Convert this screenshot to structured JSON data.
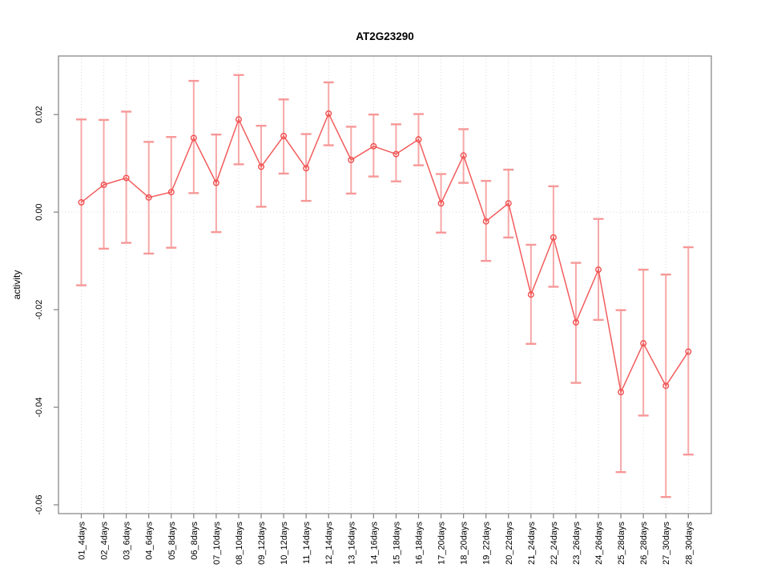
{
  "figure": {
    "title": "AT2G23290",
    "ylabel": "activity"
  },
  "chart_data": {
    "type": "line",
    "title": "AT2G23290",
    "xlabel": "",
    "ylabel": "activity",
    "point_style": "open-circle",
    "error_bars": true,
    "legend": "none",
    "grid": "vertical dotted gridline per category; dotted horizontal line at y=0",
    "ylim": [
      -0.0618,
      0.032
    ],
    "ytick_values": [
      0.02,
      0.0,
      -0.02,
      -0.04,
      -0.06
    ],
    "ytick_labels": [
      "0.02",
      "0.00",
      "-0.02",
      "-0.04",
      "-0.06"
    ],
    "categories": [
      "01_4days",
      "02_4days",
      "03_6days",
      "04_6days",
      "05_8days",
      "06_8days",
      "07_10days",
      "08_10days",
      "09_12days",
      "10_12days",
      "11_14days",
      "12_14days",
      "13_16days",
      "14_16days",
      "15_18days",
      "16_18days",
      "17_20days",
      "18_20days",
      "19_22days",
      "20_22days",
      "21_24days",
      "22_24days",
      "23_26days",
      "24_26days",
      "25_28days",
      "26_28days",
      "27_30days",
      "28_30days"
    ],
    "series": [
      {
        "name": "activity",
        "values": [
          0.002,
          0.0056,
          0.007,
          0.003,
          0.0041,
          0.0152,
          0.006,
          0.019,
          0.0093,
          0.0156,
          0.009,
          0.0202,
          0.0107,
          0.0135,
          0.0119,
          0.0149,
          0.0018,
          0.0116,
          -0.0019,
          0.0018,
          -0.0169,
          -0.0052,
          -0.0226,
          -0.0118,
          -0.0369,
          -0.0269,
          -0.0356,
          -0.0286
        ],
        "lower": [
          -0.015,
          -0.0075,
          -0.0063,
          -0.0085,
          -0.0073,
          0.0039,
          -0.0041,
          0.0098,
          0.0011,
          0.0079,
          0.0023,
          0.0137,
          0.0038,
          0.0073,
          0.0063,
          0.0096,
          -0.0042,
          0.006,
          -0.01,
          -0.0052,
          -0.027,
          -0.0153,
          -0.035,
          -0.0221,
          -0.0533,
          -0.0417,
          -0.0584,
          -0.0497
        ],
        "upper": [
          0.019,
          0.0189,
          0.0206,
          0.0144,
          0.0154,
          0.0269,
          0.0159,
          0.0281,
          0.0177,
          0.0231,
          0.016,
          0.0266,
          0.0175,
          0.02,
          0.018,
          0.0201,
          0.0078,
          0.017,
          0.0064,
          0.0087,
          -0.0067,
          0.0053,
          -0.0104,
          -0.0014,
          -0.0201,
          -0.0118,
          -0.0128,
          -0.0072
        ]
      }
    ]
  },
  "colors": {
    "series_line": "#f25c5c",
    "point_stroke": "#f04f4f",
    "error_bar": "#f7a8a8",
    "error_cap": "#f79898",
    "grid": "#d9d9d9",
    "axis_box": "#808080",
    "tick": "#808080",
    "text": "#000000",
    "background": "#ffffff"
  }
}
